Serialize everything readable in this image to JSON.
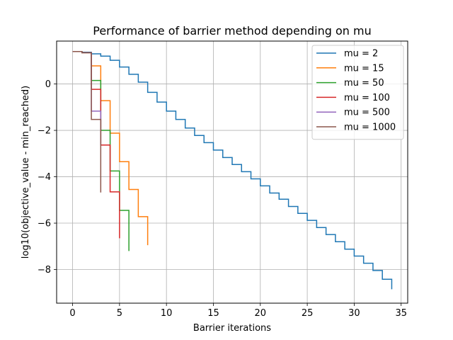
{
  "chart_data": {
    "type": "line",
    "step": "post",
    "title": "Performance of barrier method depending on mu",
    "xlabel": "Barrier iterations",
    "ylabel": "log10(objective_value - min_reached)",
    "xlim": [
      -1.7,
      35.7
    ],
    "ylim": [
      -9.45,
      1.85
    ],
    "xticks": [
      0,
      5,
      10,
      15,
      20,
      25,
      30,
      35
    ],
    "yticks": [
      -8,
      -6,
      -4,
      -2,
      0
    ],
    "grid": true,
    "legend_position": "top-right",
    "series": [
      {
        "name": "mu = 2",
        "color": "#1f77b4",
        "x": [
          0,
          1,
          2,
          3,
          4,
          5,
          6,
          7,
          8,
          9,
          10,
          11,
          12,
          13,
          14,
          15,
          16,
          17,
          18,
          19,
          20,
          21,
          22,
          23,
          24,
          25,
          26,
          27,
          28,
          29,
          30,
          31,
          32,
          33,
          34
        ],
        "y": [
          1.4,
          1.37,
          1.3,
          1.2,
          1.02,
          0.73,
          0.42,
          0.08,
          -0.36,
          -0.78,
          -1.17,
          -1.53,
          -1.9,
          -2.22,
          -2.53,
          -2.85,
          -3.17,
          -3.47,
          -3.78,
          -4.09,
          -4.39,
          -4.7,
          -4.97,
          -5.28,
          -5.58,
          -5.88,
          -6.19,
          -6.49,
          -6.8,
          -7.12,
          -7.42,
          -7.73,
          -8.04,
          -8.42,
          -8.85
        ]
      },
      {
        "name": "mu = 15",
        "color": "#ff7f0e",
        "x": [
          0,
          1,
          2,
          3,
          4,
          5,
          6,
          7,
          8
        ],
        "y": [
          1.4,
          1.35,
          0.78,
          -0.72,
          -2.12,
          -3.35,
          -4.55,
          -5.72,
          -6.95
        ]
      },
      {
        "name": "mu = 50",
        "color": "#2ca02c",
        "x": [
          0,
          1,
          2,
          3,
          4,
          5,
          6
        ],
        "y": [
          1.4,
          1.35,
          0.15,
          -2.0,
          -3.75,
          -5.45,
          -7.2
        ]
      },
      {
        "name": "mu = 100",
        "color": "#d62728",
        "x": [
          0,
          1,
          2,
          3,
          4,
          5
        ],
        "y": [
          1.4,
          1.35,
          -0.23,
          -2.63,
          -4.65,
          -6.65
        ]
      },
      {
        "name": "mu = 500",
        "color": "#9467bd",
        "x": [
          0,
          1,
          2,
          3
        ],
        "y": [
          1.4,
          1.35,
          -1.17,
          -2.6
        ]
      },
      {
        "name": "mu = 1000",
        "color": "#8c564b",
        "x": [
          0,
          1,
          2,
          3
        ],
        "y": [
          1.4,
          1.35,
          -1.53,
          -4.68
        ]
      }
    ]
  }
}
